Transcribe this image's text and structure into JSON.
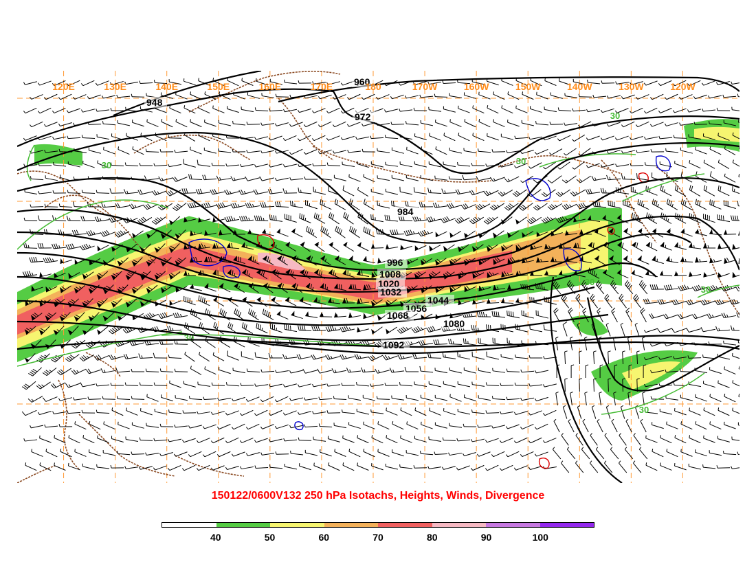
{
  "title": "150122/0600V132 250 hPa Isotachs, Heights, Winds, Divergence",
  "longitude_labels": [
    "120E",
    "130E",
    "140E",
    "150E",
    "160E",
    "170E",
    "180",
    "170W",
    "160W",
    "150W",
    "140W",
    "130W",
    "120W"
  ],
  "height_contour_labels": [
    "948",
    "960",
    "972",
    "984",
    "996",
    "1008",
    "1020",
    "1032",
    "1044",
    "1056",
    "1068",
    "1080",
    "1092"
  ],
  "isotach_contour_labels": [
    "30",
    "30",
    "30",
    "30",
    "30",
    "30",
    "30"
  ],
  "colorbar": {
    "labels": [
      "40",
      "50",
      "60",
      "70",
      "80",
      "90",
      "100"
    ],
    "colors": [
      "#ffffff",
      "#55cc44",
      "#f6f570",
      "#f3b15a",
      "#f06060",
      "#f6b9c3",
      "#c678e0",
      "#9428ee"
    ]
  },
  "colors": {
    "title": "#ff0000",
    "longitude_labels": "#ff8c1a",
    "coastline": "#8b4a22",
    "height_contours": "#000000",
    "isotach_contours": "#44bb33",
    "convergence_contours": "#0000cc",
    "divergence_contours": "#dd0000"
  }
}
